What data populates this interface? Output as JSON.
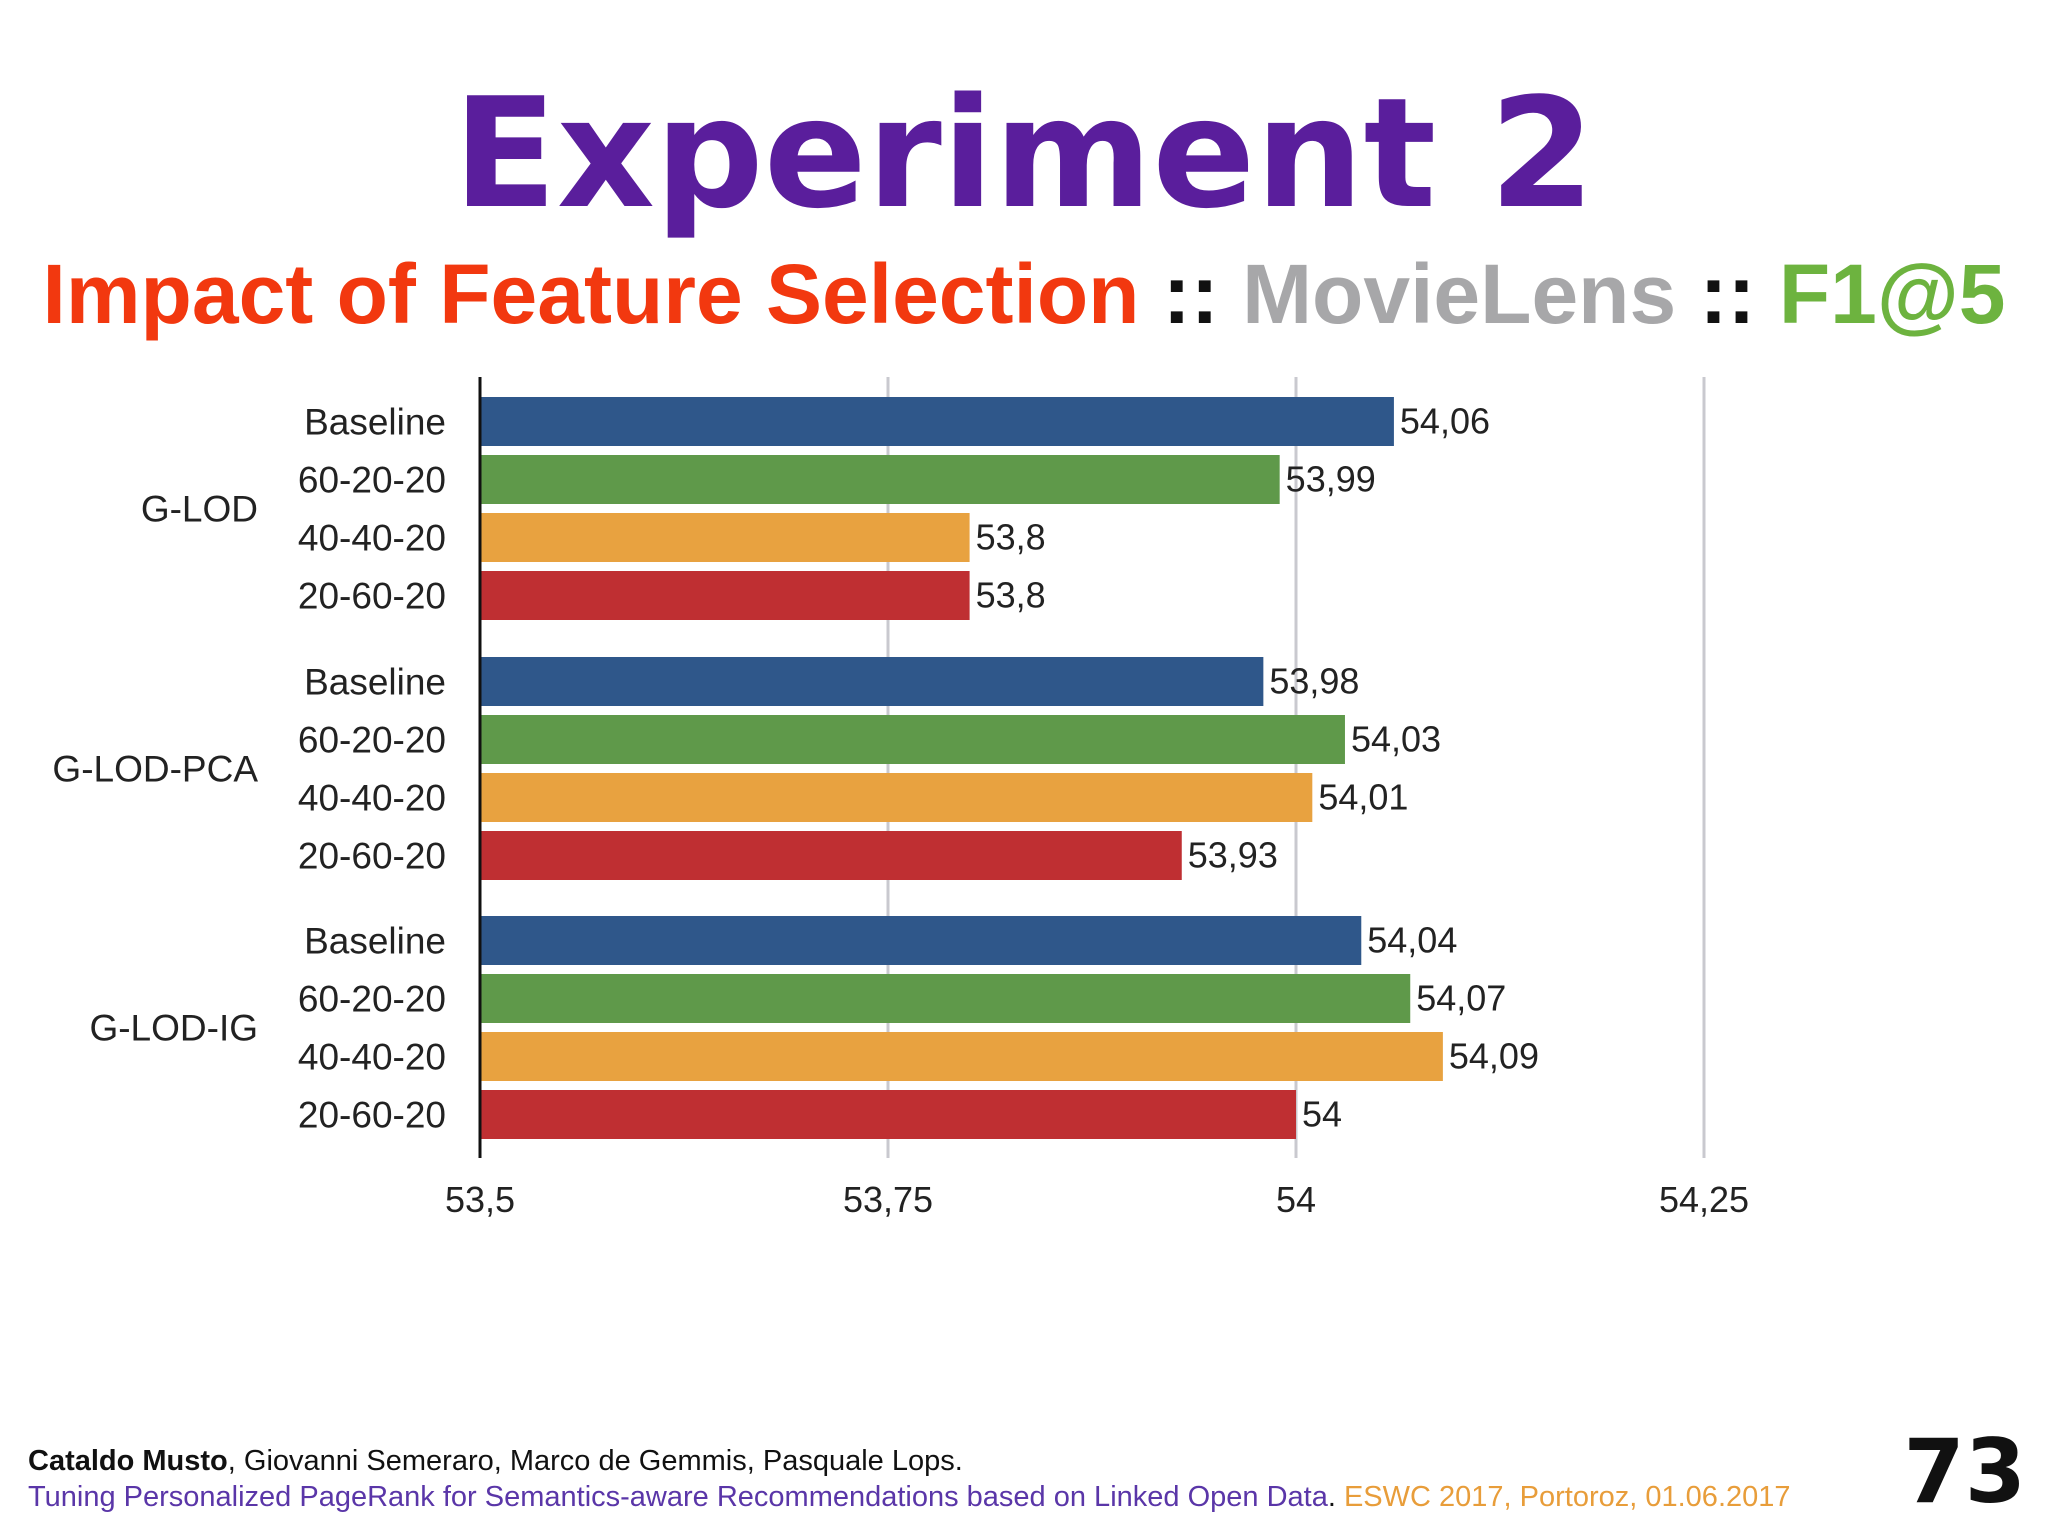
{
  "slide": {
    "title": "Experiment 2",
    "subtitle": {
      "part1": "Impact of Feature Selection",
      "sep1": " :: ",
      "part2": "MovieLens",
      "sep2": " :: ",
      "part3": "F1@5"
    },
    "footer": {
      "lead_author": "Cataldo Musto",
      "other_authors": ", Giovanni Semeraro, Marco de Gemmis, Pasquale Lops.",
      "paper_title": "Tuning Personalized PageRank for Semantics-aware Recommendations based on Linked Open Data",
      "dot": ". ",
      "venue": "ESWC 2017, Portoroz, 01.06.2017"
    },
    "page_number": "73"
  },
  "colors": {
    "title": "#5a1e9c",
    "subtitle_red": "#f2380f",
    "subtitle_grey": "#a7a7a9",
    "subtitle_green": "#6db33f",
    "Baseline": "#2f578a",
    "60-20-20": "#5f994a",
    "40-40-20": "#e8a240",
    "20-60-20": "#bf2f32"
  },
  "chart_data": {
    "type": "bar",
    "orientation": "horizontal",
    "title": "",
    "xlabel": "",
    "ylabel": "",
    "xlim": [
      53.5,
      54.375
    ],
    "xticks": [
      53.5,
      53.75,
      54,
      54.25
    ],
    "xtick_labels": [
      "53,5",
      "53,75",
      "54",
      "54,25"
    ],
    "grid": "vertical",
    "legend": "none",
    "groups": [
      {
        "name": "G-LOD",
        "bars": [
          {
            "label": "Baseline",
            "value": 54.06,
            "value_label": "54,06"
          },
          {
            "label": "60-20-20",
            "value": 53.99,
            "value_label": "53,99"
          },
          {
            "label": "40-40-20",
            "value": 53.8,
            "value_label": "53,8"
          },
          {
            "label": "20-60-20",
            "value": 53.8,
            "value_label": "53,8"
          }
        ]
      },
      {
        "name": "G-LOD-PCA",
        "bars": [
          {
            "label": "Baseline",
            "value": 53.98,
            "value_label": "53,98"
          },
          {
            "label": "60-20-20",
            "value": 54.03,
            "value_label": "54,03"
          },
          {
            "label": "40-40-20",
            "value": 54.01,
            "value_label": "54,01"
          },
          {
            "label": "20-60-20",
            "value": 53.93,
            "value_label": "53,93"
          }
        ]
      },
      {
        "name": "G-LOD-IG",
        "bars": [
          {
            "label": "Baseline",
            "value": 54.04,
            "value_label": "54,04"
          },
          {
            "label": "60-20-20",
            "value": 54.07,
            "value_label": "54,07"
          },
          {
            "label": "40-40-20",
            "value": 54.09,
            "value_label": "54,09"
          },
          {
            "label": "20-60-20",
            "value": 54.0,
            "value_label": "54"
          }
        ]
      }
    ]
  }
}
